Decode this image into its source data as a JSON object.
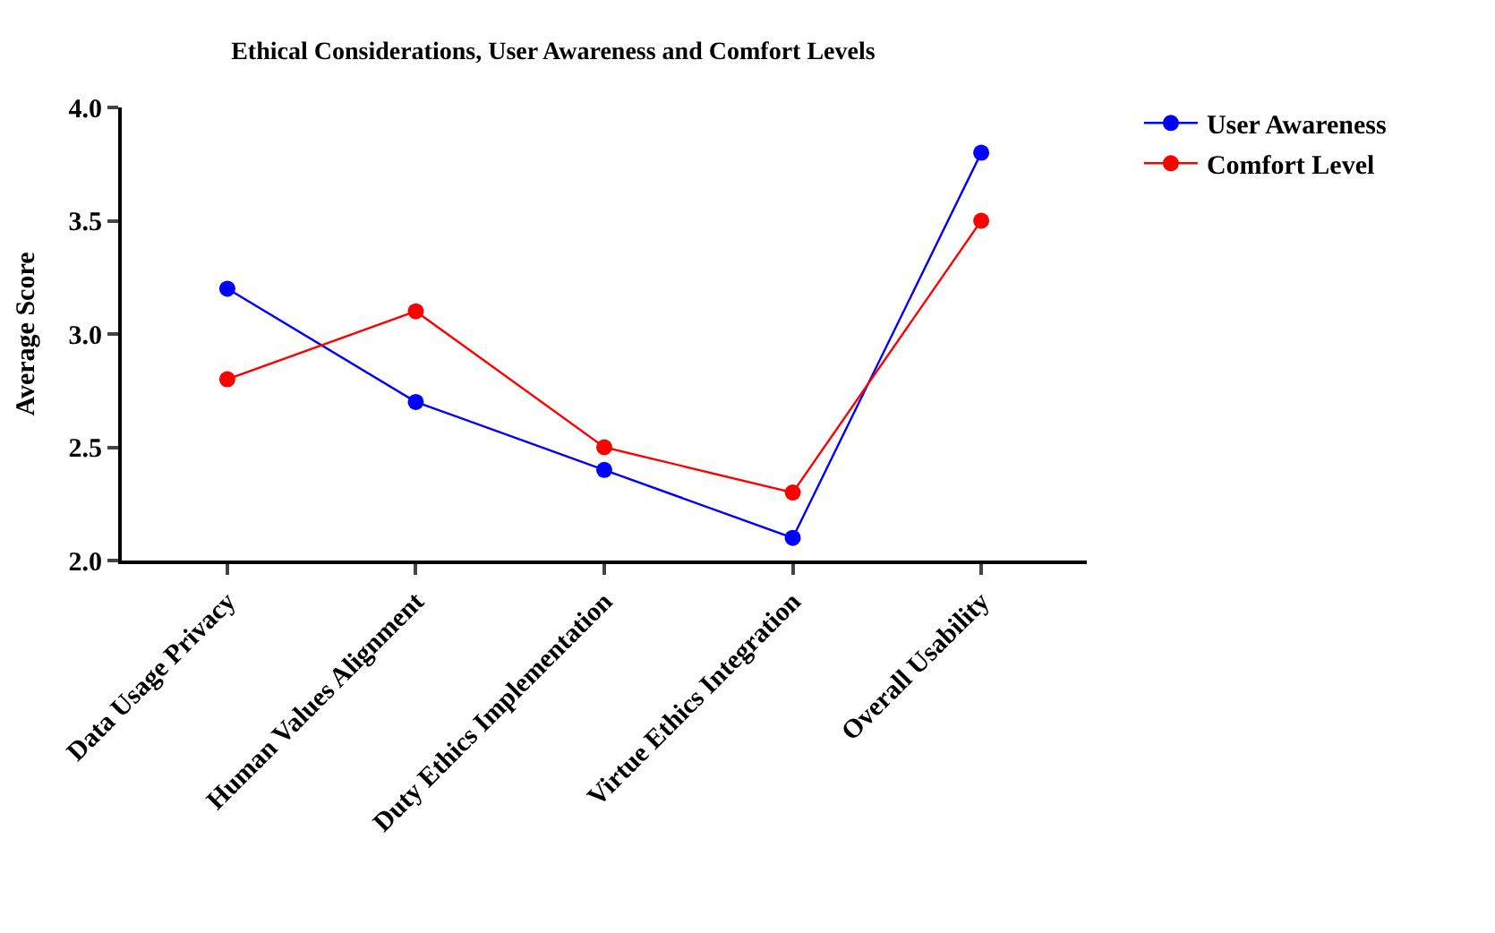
{
  "chart_data": {
    "type": "line",
    "title": "Ethical Considerations, User Awareness and Comfort Levels",
    "ylabel": "Average Score",
    "categories": [
      "Data Usage Privacy",
      "Human Values Alignment",
      "Duty Ethics Implementation",
      "Virtue Ethics Integration",
      "Overall Usability"
    ],
    "series": [
      {
        "name": "User Awareness",
        "color": "#0000ff",
        "values": [
          3.2,
          2.7,
          2.4,
          2.1,
          3.8
        ]
      },
      {
        "name": "Comfort Level",
        "color": "#ff0000",
        "values": [
          2.8,
          3.1,
          2.5,
          2.3,
          3.5
        ]
      }
    ],
    "ylim": [
      2.0,
      4.0
    ],
    "yticks": [
      {
        "value": 2.0,
        "label": "2.0"
      },
      {
        "value": 2.5,
        "label": "2.5"
      },
      {
        "value": 3.0,
        "label": "3.0"
      },
      {
        "value": 3.5,
        "label": "3.5"
      },
      {
        "value": 4.0,
        "label": "4.0"
      }
    ],
    "grid": false,
    "legend": "top right",
    "marker": "circle",
    "line_style": "solid"
  }
}
